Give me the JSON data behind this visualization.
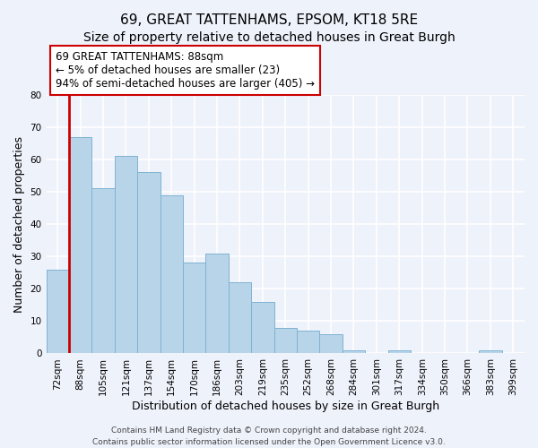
{
  "title": "69, GREAT TATTENHAMS, EPSOM, KT18 5RE",
  "subtitle": "Size of property relative to detached houses in Great Burgh",
  "xlabel": "Distribution of detached houses by size in Great Burgh",
  "ylabel": "Number of detached properties",
  "bin_labels": [
    "72sqm",
    "88sqm",
    "105sqm",
    "121sqm",
    "137sqm",
    "154sqm",
    "170sqm",
    "186sqm",
    "203sqm",
    "219sqm",
    "235sqm",
    "252sqm",
    "268sqm",
    "284sqm",
    "301sqm",
    "317sqm",
    "334sqm",
    "350sqm",
    "366sqm",
    "383sqm",
    "399sqm"
  ],
  "bar_heights": [
    26,
    67,
    51,
    61,
    56,
    49,
    28,
    31,
    22,
    16,
    8,
    7,
    6,
    1,
    0,
    1,
    0,
    0,
    0,
    1,
    0
  ],
  "bar_color": "#b8d4e8",
  "bar_edge_color": "#7fb3d3",
  "highlight_bar_index": 1,
  "highlight_line_color": "#cc0000",
  "annotation_text_line1": "69 GREAT TATTENHAMS: 88sqm",
  "annotation_text_line2": "← 5% of detached houses are smaller (23)",
  "annotation_text_line3": "94% of semi-detached houses are larger (405) →",
  "ylim": [
    0,
    80
  ],
  "yticks": [
    0,
    10,
    20,
    30,
    40,
    50,
    60,
    70,
    80
  ],
  "footer1": "Contains HM Land Registry data © Crown copyright and database right 2024.",
  "footer2": "Contains public sector information licensed under the Open Government Licence v3.0.",
  "bg_color": "#eef2fb",
  "grid_color": "#ffffff",
  "title_fontsize": 11,
  "subtitle_fontsize": 10,
  "xlabel_fontsize": 9,
  "ylabel_fontsize": 9,
  "tick_fontsize": 7.5,
  "annotation_fontsize": 8.5,
  "footer_fontsize": 6.5
}
